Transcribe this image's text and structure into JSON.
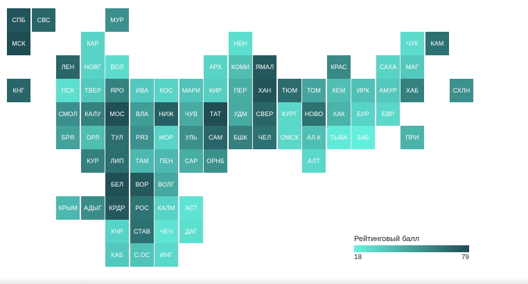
{
  "legend": {
    "title": "Рейтинговый балл",
    "min": 18,
    "max": 79,
    "min_label": "18",
    "max_label": "79",
    "color_low": "#66f5e2",
    "color_high": "#1f4d54"
  },
  "regions": [
    {
      "label": "СПБ",
      "row": 0,
      "col": 0,
      "score": 76
    },
    {
      "label": "СВС",
      "row": 0,
      "col": 1,
      "score": 70
    },
    {
      "label": "МУР",
      "row": 0,
      "col": 4,
      "score": 55
    },
    {
      "label": "КАР",
      "row": 1,
      "col": 3,
      "score": 30
    },
    {
      "label": "НЕН",
      "row": 1,
      "col": 9,
      "score": 26
    },
    {
      "label": "ЧУК",
      "row": 1,
      "col": 16,
      "score": 27
    },
    {
      "label": "КАМ",
      "row": 1,
      "col": 17,
      "score": 66
    },
    {
      "label": "МСК",
      "row": 1,
      "col": 0,
      "score": 79
    },
    {
      "label": "ЛЕН",
      "row": 2,
      "col": 2,
      "score": 70
    },
    {
      "label": "НОВГ",
      "row": 2,
      "col": 3,
      "score": 30
    },
    {
      "label": "ВОЛ",
      "row": 2,
      "col": 4,
      "score": 27
    },
    {
      "label": "АРХ",
      "row": 2,
      "col": 8,
      "score": 30
    },
    {
      "label": "КОМИ",
      "row": 2,
      "col": 9,
      "score": 38
    },
    {
      "label": "ЯМАЛ",
      "row": 2,
      "col": 10,
      "score": 75
    },
    {
      "label": "КРАС",
      "row": 2,
      "col": 13,
      "score": 57
    },
    {
      "label": "САХА",
      "row": 2,
      "col": 15,
      "score": 30
    },
    {
      "label": "МАГ",
      "row": 2,
      "col": 16,
      "score": 34
    },
    {
      "label": "КНГ",
      "row": 3,
      "col": 0,
      "score": 70
    },
    {
      "label": "ПСК",
      "row": 3,
      "col": 2,
      "score": 26
    },
    {
      "label": "ТВЕР",
      "row": 3,
      "col": 3,
      "score": 34
    },
    {
      "label": "ЯРО",
      "row": 3,
      "col": 4,
      "score": 60
    },
    {
      "label": "ИВА",
      "row": 3,
      "col": 5,
      "score": 34
    },
    {
      "label": "КОС",
      "row": 3,
      "col": 6,
      "score": 30
    },
    {
      "label": "МАРИ",
      "row": 3,
      "col": 7,
      "score": 36
    },
    {
      "label": "КИР",
      "row": 3,
      "col": 8,
      "score": 32
    },
    {
      "label": "ПЕР",
      "row": 3,
      "col": 9,
      "score": 44
    },
    {
      "label": "ХАН",
      "row": 3,
      "col": 10,
      "score": 77
    },
    {
      "label": "ТЮМ",
      "row": 3,
      "col": 11,
      "score": 68
    },
    {
      "label": "ТОМ",
      "row": 3,
      "col": 12,
      "score": 47
    },
    {
      "label": "КЕМ",
      "row": 3,
      "col": 13,
      "score": 38
    },
    {
      "label": "ИРК",
      "row": 3,
      "col": 14,
      "score": 37
    },
    {
      "label": "АМУР",
      "row": 3,
      "col": 15,
      "score": 34
    },
    {
      "label": "ХАБ",
      "row": 3,
      "col": 16,
      "score": 60
    },
    {
      "label": "СХЛН",
      "row": 3,
      "col": 18,
      "score": 55
    },
    {
      "label": "СМОЛ",
      "row": 4,
      "col": 2,
      "score": 55
    },
    {
      "label": "КАЛУ",
      "row": 4,
      "col": 3,
      "score": 60
    },
    {
      "label": "МОС",
      "row": 4,
      "col": 4,
      "score": 78
    },
    {
      "label": "ВЛА",
      "row": 4,
      "col": 5,
      "score": 50
    },
    {
      "label": "НИЖ",
      "row": 4,
      "col": 6,
      "score": 72
    },
    {
      "label": "ЧУВ",
      "row": 4,
      "col": 7,
      "score": 45
    },
    {
      "label": "ТАТ",
      "row": 4,
      "col": 8,
      "score": 79
    },
    {
      "label": "УДМ",
      "row": 4,
      "col": 9,
      "score": 45
    },
    {
      "label": "СВЕР",
      "row": 4,
      "col": 10,
      "score": 70
    },
    {
      "label": "КУРГ",
      "row": 4,
      "col": 11,
      "score": 28
    },
    {
      "label": "НОВО",
      "row": 4,
      "col": 12,
      "score": 66
    },
    {
      "label": "ХАК",
      "row": 4,
      "col": 13,
      "score": 42
    },
    {
      "label": "БУР",
      "row": 4,
      "col": 14,
      "score": 30
    },
    {
      "label": "ЕВР",
      "row": 4,
      "col": 15,
      "score": 28
    },
    {
      "label": "БРЯ",
      "row": 5,
      "col": 2,
      "score": 48
    },
    {
      "label": "ОРЛ",
      "row": 5,
      "col": 3,
      "score": 38
    },
    {
      "label": "ТУЛ",
      "row": 5,
      "col": 4,
      "score": 67
    },
    {
      "label": "РЯЗ",
      "row": 5,
      "col": 5,
      "score": 55
    },
    {
      "label": "МОР",
      "row": 5,
      "col": 6,
      "score": 30
    },
    {
      "label": "УЛЬ",
      "row": 5,
      "col": 7,
      "score": 55
    },
    {
      "label": "САМ",
      "row": 5,
      "col": 8,
      "score": 70
    },
    {
      "label": "БШК",
      "row": 5,
      "col": 9,
      "score": 60
    },
    {
      "label": "ЧЕЛ",
      "row": 5,
      "col": 10,
      "score": 66
    },
    {
      "label": "ОМСК",
      "row": 5,
      "col": 11,
      "score": 28
    },
    {
      "label": "АЛ.К",
      "row": 5,
      "col": 12,
      "score": 38
    },
    {
      "label": "ТЫВА",
      "row": 5,
      "col": 13,
      "score": 22
    },
    {
      "label": "ЗАБ",
      "row": 5,
      "col": 14,
      "score": 20
    },
    {
      "label": "ПРИ",
      "row": 5,
      "col": 16,
      "score": 42
    },
    {
      "label": "КУР",
      "row": 6,
      "col": 3,
      "score": 60
    },
    {
      "label": "ЛИП",
      "row": 6,
      "col": 4,
      "score": 67
    },
    {
      "label": "ТАМ",
      "row": 6,
      "col": 5,
      "score": 40
    },
    {
      "label": "ПЕН",
      "row": 6,
      "col": 6,
      "score": 40
    },
    {
      "label": "САР",
      "row": 6,
      "col": 7,
      "score": 44
    },
    {
      "label": "ОРНБ",
      "row": 6,
      "col": 8,
      "score": 55
    },
    {
      "label": "АЛТ",
      "row": 6,
      "col": 12,
      "score": 28
    },
    {
      "label": "БЕЛ",
      "row": 7,
      "col": 4,
      "score": 78
    },
    {
      "label": "ВОР",
      "row": 7,
      "col": 5,
      "score": 75
    },
    {
      "label": "ВОЛГ",
      "row": 7,
      "col": 6,
      "score": 46
    },
    {
      "label": "КРЫМ",
      "row": 8,
      "col": 2,
      "score": 40
    },
    {
      "label": "АДЫГ",
      "row": 8,
      "col": 3,
      "score": 56
    },
    {
      "label": "КРДР",
      "row": 8,
      "col": 4,
      "score": 75
    },
    {
      "label": "РОС",
      "row": 8,
      "col": 5,
      "score": 65
    },
    {
      "label": "КАЛМ",
      "row": 8,
      "col": 6,
      "score": 30
    },
    {
      "label": "АСТ",
      "row": 8,
      "col": 7,
      "score": 24
    },
    {
      "label": "КЧР",
      "row": 9,
      "col": 4,
      "score": 30
    },
    {
      "label": "СТАВ",
      "row": 9,
      "col": 5,
      "score": 66
    },
    {
      "label": "ЧЕЧ",
      "row": 9,
      "col": 6,
      "score": 24
    },
    {
      "label": "ДАГ",
      "row": 9,
      "col": 7,
      "score": 26
    },
    {
      "label": "КАБ",
      "row": 10,
      "col": 4,
      "score": 34
    },
    {
      "label": "С.ОС",
      "row": 10,
      "col": 5,
      "score": 36
    },
    {
      "label": "ИНГ",
      "row": 10,
      "col": 6,
      "score": 28
    }
  ]
}
